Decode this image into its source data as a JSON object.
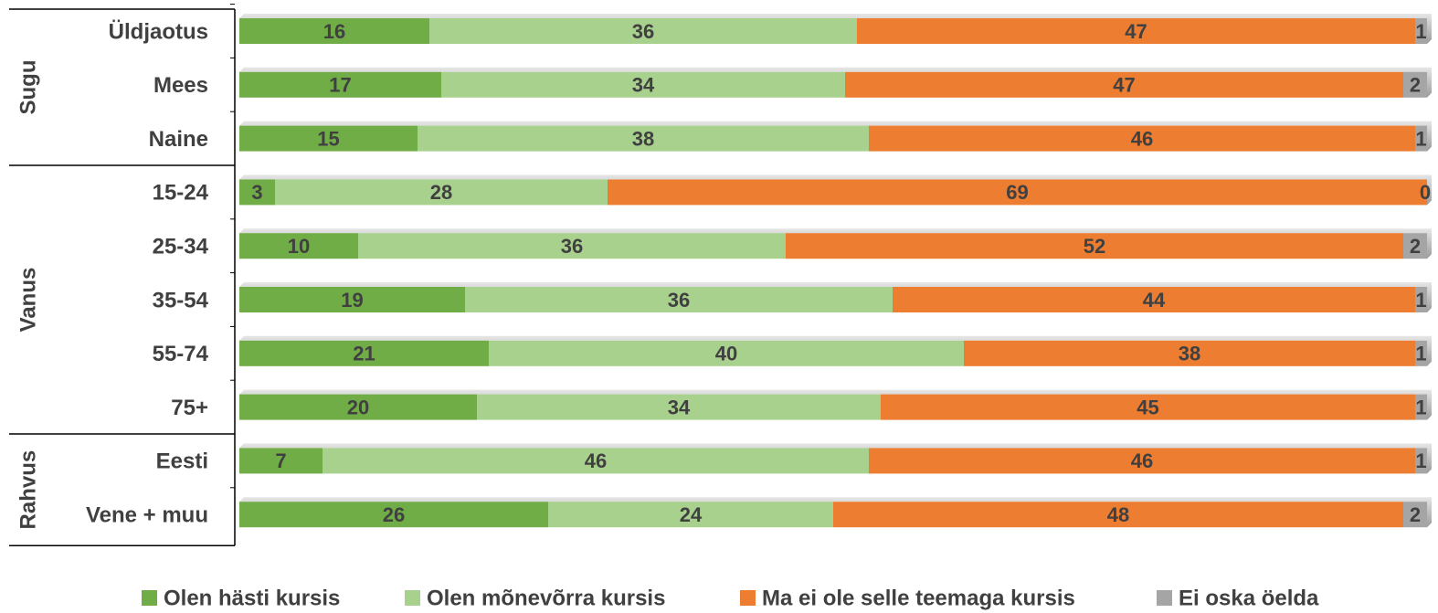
{
  "chart_data": {
    "type": "stacked-bar-horizontal",
    "categories": [
      "Üldjaotus",
      "Mees",
      "Naine",
      "15-24",
      "25-34",
      "35-54",
      "55-74",
      "75+",
      "Eesti",
      "Vene + muu"
    ],
    "group": [
      "Sugu",
      "Sugu",
      "Sugu",
      "Vanus",
      "Vanus",
      "Vanus",
      "Vanus",
      "Vanus",
      "Rahvus",
      "Rahvus"
    ],
    "xlim": [
      0,
      100
    ],
    "legend": "bottom",
    "series": [
      {
        "name": "Olen hästi kursis",
        "color": "#70ad47",
        "values": [
          16,
          17,
          15,
          3,
          10,
          19,
          21,
          20,
          7,
          26
        ]
      },
      {
        "name": "Olen mõnevõrra kursis",
        "color": "#a9d18e",
        "values": [
          36,
          34,
          38,
          28,
          36,
          36,
          40,
          34,
          46,
          24
        ]
      },
      {
        "name": "Ma ei ole selle teemaga kursis",
        "color": "#ed7d31",
        "values": [
          47,
          47,
          46,
          69,
          52,
          44,
          38,
          45,
          46,
          48
        ]
      },
      {
        "name": "Ei oska öelda",
        "color": "#a5a5a5",
        "values": [
          1,
          2,
          1,
          0,
          2,
          1,
          1,
          1,
          1,
          2
        ]
      }
    ]
  }
}
